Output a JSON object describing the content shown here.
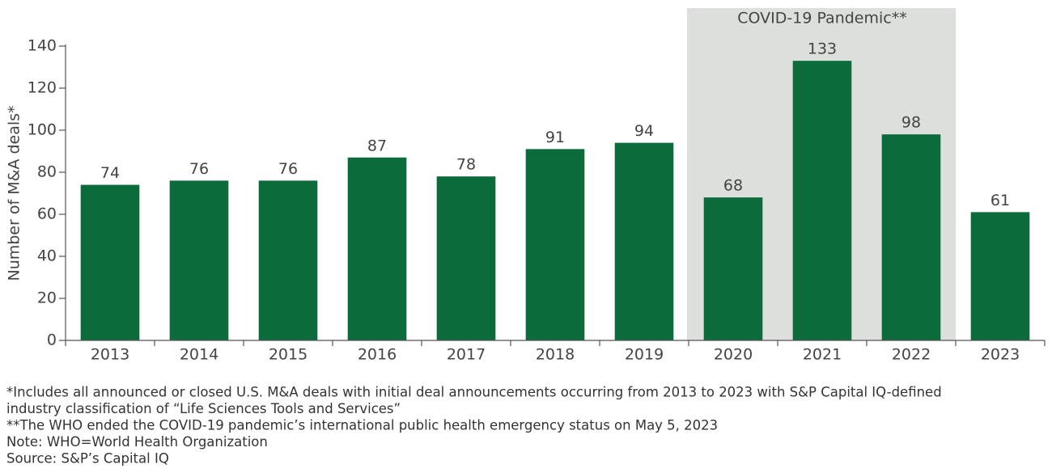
{
  "chart_data": {
    "type": "bar",
    "y_label": "Number of M&A deals*",
    "categories": [
      "2013",
      "2014",
      "2015",
      "2016",
      "2017",
      "2018",
      "2019",
      "2020",
      "2021",
      "2022",
      "2023"
    ],
    "values": [
      74,
      76,
      76,
      87,
      78,
      91,
      94,
      68,
      133,
      98,
      61
    ],
    "color": "#0b6b3b",
    "ylim": [
      0,
      140
    ],
    "yticks": [
      0,
      20,
      40,
      60,
      80,
      100,
      120,
      140
    ],
    "grid": false,
    "highlight": {
      "label": "COVID-19 Pandemic**",
      "from": "2020",
      "to": "2022",
      "color": "#dcdfdc"
    },
    "footnotes": [
      "*Includes all announced or closed U.S. M&A deals with initial deal announcements occurring from 2013 to 2023 with S&P Capital IQ-defined",
      "industry classification of “Life Sciences Tools and Services”",
      "**The WHO ended the COVID-19 pandemic’s international public health emergency status on May 5, 2023",
      "Note: WHO=World Health Organization",
      "Source: S&P’s Capital IQ"
    ]
  }
}
